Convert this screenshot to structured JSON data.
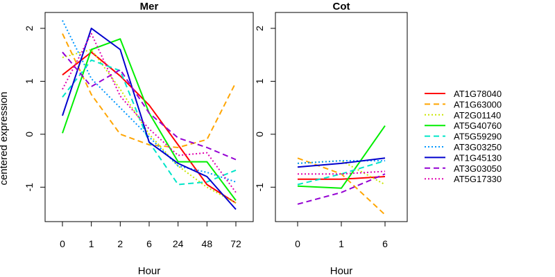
{
  "chart_data": {
    "type": "line",
    "ylabel": "centered expression",
    "ylim": [
      -1.65,
      2.3
    ],
    "yticks": [
      -1,
      0,
      1,
      2
    ],
    "legend_position": "right",
    "series_styles": [
      {
        "name": "AT1G78040",
        "color": "#ff0000",
        "dash": "solid"
      },
      {
        "name": "AT1G63000",
        "color": "#ffa500",
        "dash": "dashed"
      },
      {
        "name": "AT2G01140",
        "color": "#c8e600",
        "dash": "dotted"
      },
      {
        "name": "AT5G40760",
        "color": "#00ee00",
        "dash": "solid"
      },
      {
        "name": "AT5G59290",
        "color": "#00e5c8",
        "dash": "dashed"
      },
      {
        "name": "AT3G03250",
        "color": "#0096ff",
        "dash": "dotted"
      },
      {
        "name": "AT1G45130",
        "color": "#0000cd",
        "dash": "solid"
      },
      {
        "name": "AT3G03050",
        "color": "#9400d3",
        "dash": "dashed"
      },
      {
        "name": "AT5G17330",
        "color": "#e000b0",
        "dash": "dotted"
      }
    ],
    "panels": [
      {
        "title": "Mer",
        "xlabel": "Hour",
        "categories": [
          "0",
          "1",
          "2",
          "6",
          "24",
          "48",
          "72"
        ],
        "series": [
          {
            "name": "AT1G78040",
            "values": [
              1.12,
              1.55,
              1.1,
              0.55,
              -0.2,
              -0.95,
              -1.3
            ]
          },
          {
            "name": "AT1G63000",
            "values": [
              1.9,
              0.75,
              0.0,
              -0.2,
              -0.25,
              -0.1,
              0.98
            ]
          },
          {
            "name": "AT2G01140",
            "values": [
              1.45,
              1.6,
              0.85,
              0.0,
              -0.6,
              -1.0,
              -1.3
            ]
          },
          {
            "name": "AT5G40760",
            "values": [
              0.02,
              1.6,
              1.8,
              0.4,
              -0.52,
              -0.52,
              -1.25
            ]
          },
          {
            "name": "AT5G59290",
            "values": [
              0.7,
              1.4,
              1.2,
              -0.15,
              -0.95,
              -0.9,
              -0.68
            ]
          },
          {
            "name": "AT3G03250",
            "values": [
              2.15,
              1.05,
              0.5,
              -0.05,
              -0.6,
              -0.72,
              -0.9
            ]
          },
          {
            "name": "AT1G45130",
            "values": [
              0.35,
              2.0,
              1.6,
              -0.15,
              -0.55,
              -0.8,
              -1.42
            ]
          },
          {
            "name": "AT3G03050",
            "values": [
              1.55,
              0.9,
              1.22,
              0.4,
              -0.07,
              -0.25,
              -0.48
            ]
          },
          {
            "name": "AT5G17330",
            "values": [
              0.85,
              1.9,
              0.72,
              0.1,
              -0.4,
              -0.35,
              -1.1
            ]
          }
        ]
      },
      {
        "title": "Cot",
        "xlabel": "Hour",
        "categories": [
          "0",
          "1",
          "6"
        ],
        "series": [
          {
            "name": "AT1G78040",
            "values": [
              -0.85,
              -0.85,
              -0.8
            ]
          },
          {
            "name": "AT1G63000",
            "values": [
              -0.45,
              -0.75,
              -1.52
            ]
          },
          {
            "name": "AT2G01140",
            "values": [
              -0.55,
              -0.5,
              -0.95
            ]
          },
          {
            "name": "AT5G40760",
            "values": [
              -0.98,
              -1.02,
              0.16
            ]
          },
          {
            "name": "AT5G59290",
            "values": [
              -0.95,
              -0.75,
              -0.5
            ]
          },
          {
            "name": "AT3G03250",
            "values": [
              -0.55,
              -0.5,
              -0.5
            ]
          },
          {
            "name": "AT1G45130",
            "values": [
              -0.62,
              -0.55,
              -0.45
            ]
          },
          {
            "name": "AT3G03050",
            "values": [
              -1.32,
              -1.1,
              -0.75
            ]
          },
          {
            "name": "AT5G17330",
            "values": [
              -0.75,
              -0.75,
              -0.7
            ]
          }
        ]
      }
    ]
  }
}
